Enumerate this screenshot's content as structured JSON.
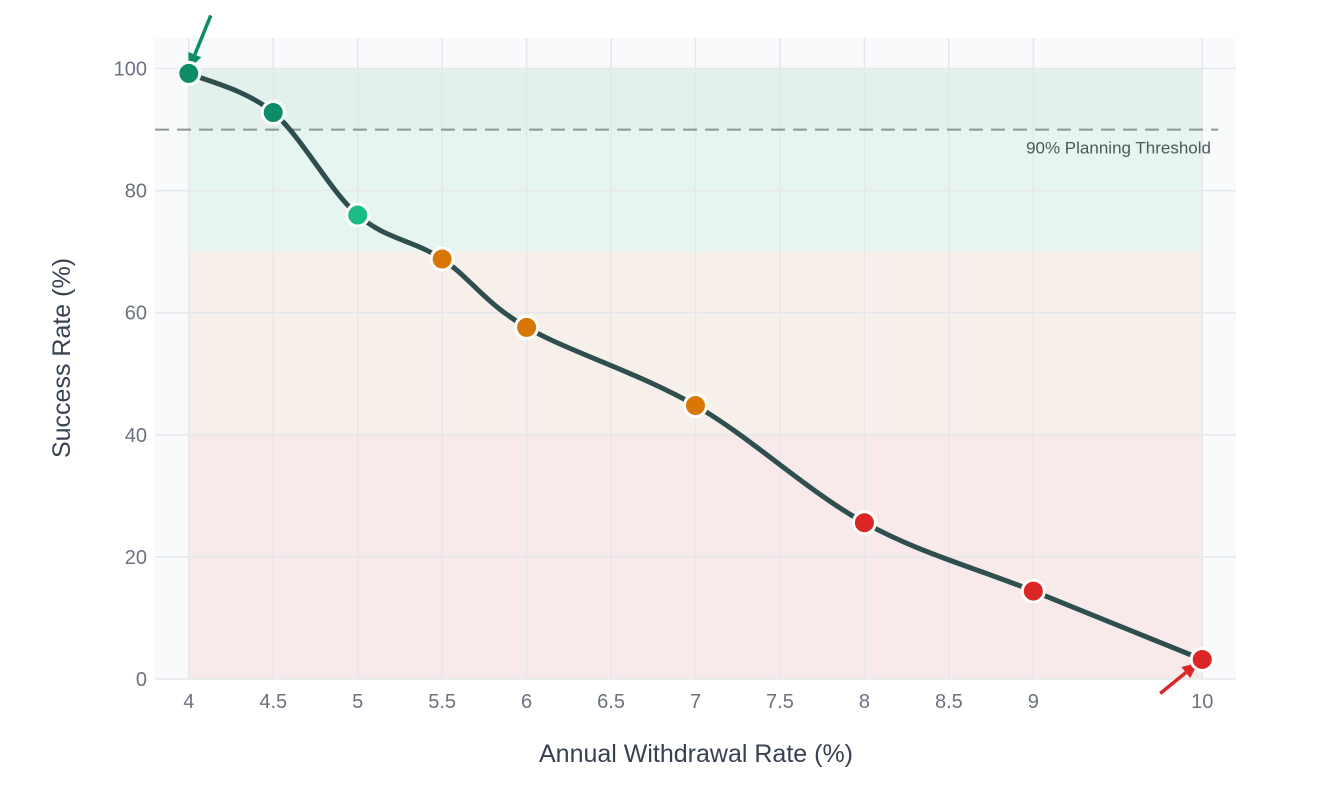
{
  "chart_data": {
    "type": "line",
    "title": "",
    "xlabel": "Annual Withdrawal Rate (%)",
    "ylabel": "Success Rate (%)",
    "xlim": [
      3.8,
      10.2
    ],
    "ylim": [
      0,
      105
    ],
    "x_ticks": [
      4,
      4.5,
      5,
      5.5,
      6,
      6.5,
      7,
      7.5,
      8,
      8.5,
      9,
      10
    ],
    "x_tick_labels": [
      "4",
      "4.5",
      "5",
      "5.5",
      "6",
      "6.5",
      "7",
      "7.5",
      "8",
      "8.5",
      "9",
      "10"
    ],
    "y_ticks": [
      0,
      20,
      40,
      60,
      80,
      100
    ],
    "y_tick_labels": [
      "0",
      "20",
      "40",
      "60",
      "80",
      "100"
    ],
    "grid": true,
    "bands": [
      {
        "from": 90,
        "to": 100,
        "color": "#e2f1ec"
      },
      {
        "from": 70,
        "to": 90,
        "color": "#e7f5f1"
      },
      {
        "from": 40,
        "to": 70,
        "color": "#f7f0ea"
      },
      {
        "from": 0,
        "to": 40,
        "color": "#f8eaea"
      }
    ],
    "threshold": {
      "value": 90,
      "label": "90% Planning Threshold",
      "color": "#8a9895"
    },
    "series": [
      {
        "line_color": "#2f4f4f",
        "points": [
          {
            "x": 4,
            "y": 99.2,
            "color": "#0e8c67"
          },
          {
            "x": 4.5,
            "y": 92.8,
            "color": "#0e8c67"
          },
          {
            "x": 5,
            "y": 76.0,
            "color": "#1abc88"
          },
          {
            "x": 5.5,
            "y": 68.8,
            "color": "#d97706"
          },
          {
            "x": 6,
            "y": 57.6,
            "color": "#d97706"
          },
          {
            "x": 7,
            "y": 44.8,
            "color": "#d97706"
          },
          {
            "x": 8,
            "y": 25.6,
            "color": "#dc2626"
          },
          {
            "x": 9,
            "y": 14.4,
            "color": "#dc2626"
          },
          {
            "x": 10,
            "y": 3.2,
            "color": "#dc2626"
          }
        ]
      }
    ],
    "annotations": [
      {
        "x": 4,
        "y": 99.2,
        "arrow_color": "#0e8c67",
        "from": "top-right"
      },
      {
        "x": 10,
        "y": 3.2,
        "arrow_color": "#dc2626",
        "from": "bottom-left"
      }
    ],
    "colors": {
      "plot_bg": "#f8fafc",
      "grid": "#e5e7eb"
    }
  }
}
